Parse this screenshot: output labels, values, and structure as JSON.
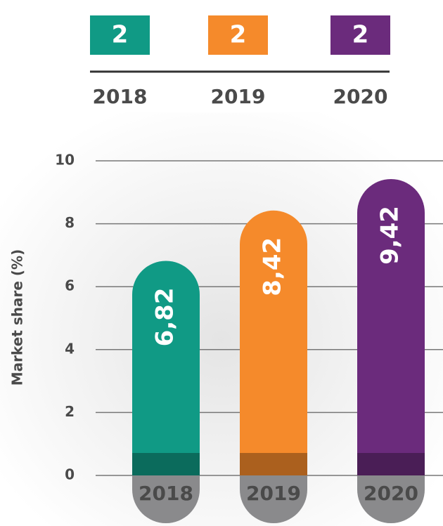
{
  "header": {
    "boxes": [
      {
        "label": "2",
        "year": "2018",
        "color": "#109a85"
      },
      {
        "label": "2",
        "year": "2019",
        "color": "#f58a2b"
      },
      {
        "label": "2",
        "year": "2020",
        "color": "#6b2b7c"
      }
    ]
  },
  "chart_data": {
    "type": "bar",
    "y_label": "Market share (%)",
    "categories": [
      "2018",
      "2019",
      "2020"
    ],
    "values": [
      6.82,
      8.42,
      9.42
    ],
    "value_labels": [
      "6,82",
      "8,42",
      "9,42"
    ],
    "colors": [
      "#109a85",
      "#f58a2b",
      "#6b2b7c"
    ],
    "ylim": [
      0,
      10
    ],
    "yticks": [
      0,
      2,
      4,
      6,
      8,
      10
    ],
    "grid": true
  }
}
